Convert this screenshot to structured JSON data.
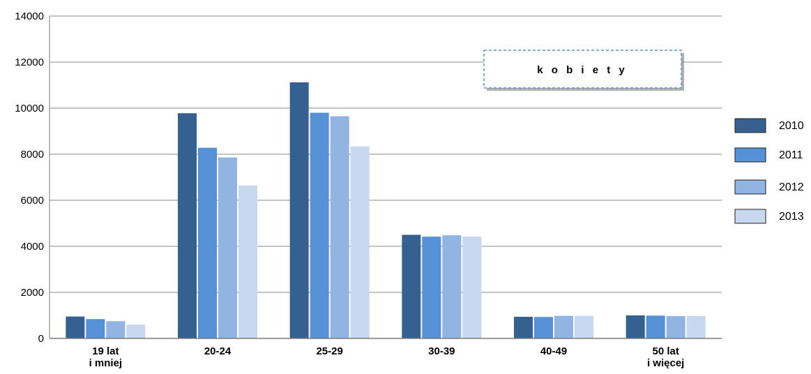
{
  "chart_data": {
    "type": "bar",
    "title": "k o b i e t y",
    "xlabel": "",
    "ylabel": "",
    "ylim": [
      0,
      14000
    ],
    "yticks": [
      0,
      2000,
      4000,
      6000,
      8000,
      10000,
      12000,
      14000
    ],
    "categories": [
      [
        "19 lat",
        "i mniej"
      ],
      [
        "20-24"
      ],
      [
        "25-29"
      ],
      [
        "30-39"
      ],
      [
        "40-49"
      ],
      [
        "50 lat",
        "i więcej"
      ]
    ],
    "series": [
      {
        "name": "2010",
        "color": "#36608f",
        "values": [
          950,
          9780,
          11120,
          4500,
          940,
          1000
        ]
      },
      {
        "name": "2011",
        "color": "#5690d6",
        "values": [
          840,
          8280,
          9800,
          4420,
          930,
          990
        ]
      },
      {
        "name": "2012",
        "color": "#92b4e3",
        "values": [
          750,
          7860,
          9650,
          4480,
          980,
          970
        ]
      },
      {
        "name": "2013",
        "color": "#c6d7ef",
        "values": [
          600,
          6640,
          8340,
          4420,
          980,
          970
        ]
      }
    ],
    "grid": true,
    "legend": "right"
  }
}
